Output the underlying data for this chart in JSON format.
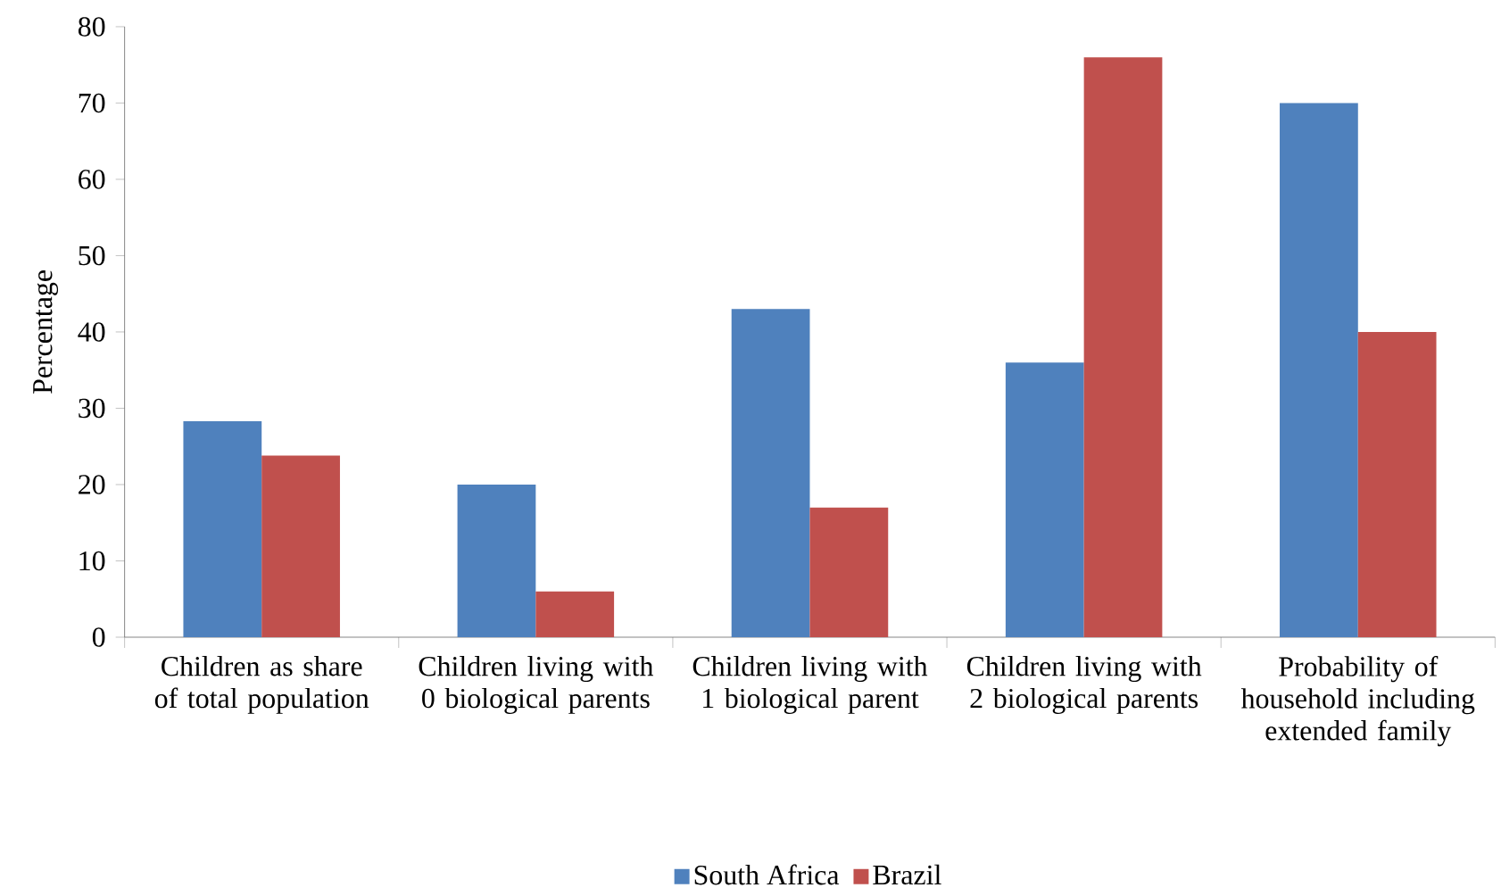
{
  "chart_data": {
    "type": "bar",
    "ylabel": "Percentage",
    "categories": [
      "Children as share of total population",
      "Children living with 0 biological parents",
      "Children living with 1 biological parent",
      "Children living with 2 biological parents",
      "Probability of household including extended family"
    ],
    "series": [
      {
        "name": "South Africa",
        "color": "#4f81bd",
        "values": [
          28.3,
          20,
          43,
          36,
          70
        ]
      },
      {
        "name": "Brazil",
        "color": "#c0504d",
        "values": [
          23.8,
          6,
          17,
          76,
          40
        ]
      }
    ],
    "ylim": [
      0,
      80
    ],
    "yticks": [
      0,
      10,
      20,
      30,
      40,
      50,
      60,
      70,
      80
    ],
    "grid": false,
    "legend": "bottom"
  }
}
